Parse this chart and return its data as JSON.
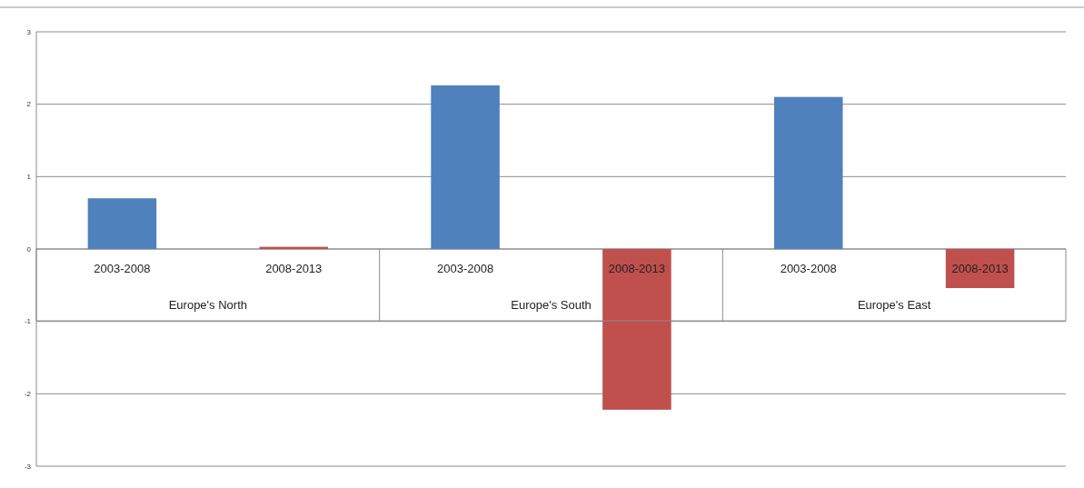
{
  "chart_data": {
    "type": "bar",
    "categories": [
      "2003-2008",
      "2008-2013",
      "2003-2008",
      "2008-2013",
      "2003-2008",
      "2008-2013"
    ],
    "values": [
      0.7,
      0.03,
      2.26,
      -2.22,
      2.1,
      -0.54
    ],
    "colors": [
      "#4f81bd",
      "#c0504d",
      "#4f81bd",
      "#c0504d",
      "#4f81bd",
      "#c0504d"
    ],
    "annotations": [
      "Europe's North",
      "Europe's South",
      "Europe's East"
    ],
    "ylim": [
      -3,
      3
    ],
    "yticks": [
      -3,
      -2,
      -1,
      0,
      1,
      2,
      3
    ],
    "grid": "y"
  }
}
